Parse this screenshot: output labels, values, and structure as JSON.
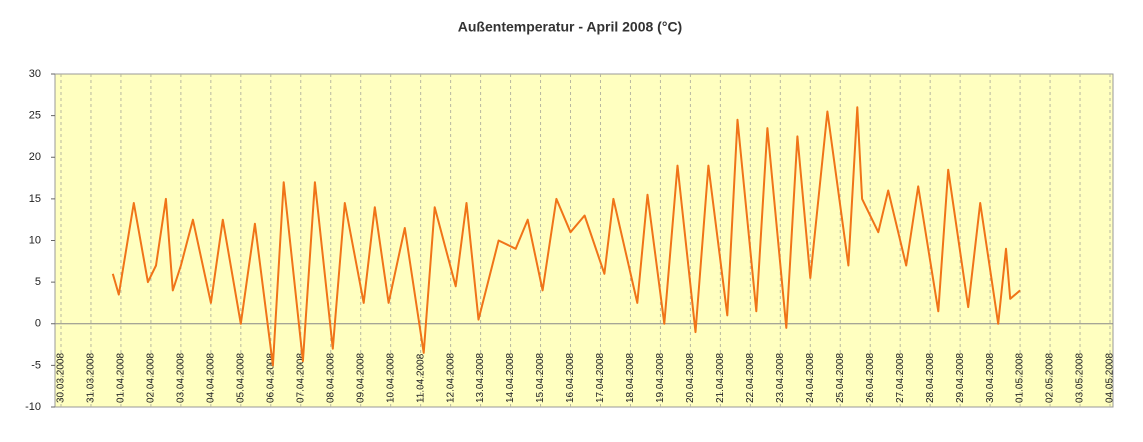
{
  "chart_data": {
    "type": "line",
    "title": "Außentemperatur - April 2008 (°C)",
    "background": "#ffffc0",
    "grid": true,
    "xlim": [
      -0.2,
      35.1
    ],
    "xticks": [
      {
        "value": 0,
        "label": "30.03.2008"
      },
      {
        "value": 1,
        "label": "31.03.2008"
      },
      {
        "value": 2,
        "label": "01.04.2008"
      },
      {
        "value": 3,
        "label": "02.04.2008"
      },
      {
        "value": 4,
        "label": "03.04.2008"
      },
      {
        "value": 5,
        "label": "04.04.2008"
      },
      {
        "value": 6,
        "label": "05.04.2008"
      },
      {
        "value": 7,
        "label": "06.04.2008"
      },
      {
        "value": 8,
        "label": "07.04.2008"
      },
      {
        "value": 9,
        "label": "08.04.2008"
      },
      {
        "value": 10,
        "label": "09.04.2008"
      },
      {
        "value": 11,
        "label": "10.04.2008"
      },
      {
        "value": 12,
        "label": "11.04.2008"
      },
      {
        "value": 13,
        "label": "12.04.2008"
      },
      {
        "value": 14,
        "label": "13.04.2008"
      },
      {
        "value": 15,
        "label": "14.04.2008"
      },
      {
        "value": 16,
        "label": "15.04.2008"
      },
      {
        "value": 17,
        "label": "16.04.2008"
      },
      {
        "value": 18,
        "label": "17.04.2008"
      },
      {
        "value": 19,
        "label": "18.04.2008"
      },
      {
        "value": 20,
        "label": "19.04.2008"
      },
      {
        "value": 21,
        "label": "20.04.2008"
      },
      {
        "value": 22,
        "label": "21.04.2008"
      },
      {
        "value": 23,
        "label": "22.04.2008"
      },
      {
        "value": 24,
        "label": "23.04.2008"
      },
      {
        "value": 25,
        "label": "24.04.2008"
      },
      {
        "value": 26,
        "label": "25.04.2008"
      },
      {
        "value": 27,
        "label": "26.04.2008"
      },
      {
        "value": 28,
        "label": "27.04.2008"
      },
      {
        "value": 29,
        "label": "28.04.2008"
      },
      {
        "value": 30,
        "label": "29.04.2008"
      },
      {
        "value": 31,
        "label": "30.04.2008"
      },
      {
        "value": 32,
        "label": "01.05.2008"
      },
      {
        "value": 33,
        "label": "02.05.2008"
      },
      {
        "value": 34,
        "label": "03.05.2008"
      },
      {
        "value": 35,
        "label": "04.05.2008"
      }
    ],
    "ylim": [
      -10,
      30
    ],
    "yticks": [
      -10,
      -5,
      0,
      5,
      10,
      15,
      20,
      25,
      30
    ],
    "series": [
      {
        "color": "#f07418",
        "x": [
          1.73,
          1.93,
          2.43,
          2.9,
          3.17,
          3.5,
          3.73,
          4.0,
          4.4,
          5.0,
          5.4,
          6.0,
          6.47,
          7.07,
          7.43,
          8.07,
          8.47,
          9.07,
          9.47,
          10.1,
          10.47,
          10.93,
          11.47,
          12.1,
          12.47,
          13.17,
          13.53,
          13.93,
          14.6,
          15.17,
          15.57,
          16.07,
          16.53,
          17.0,
          17.47,
          18.13,
          18.43,
          19.23,
          19.57,
          20.13,
          20.57,
          21.17,
          21.6,
          22.23,
          22.57,
          23.2,
          23.57,
          24.2,
          24.57,
          25.0,
          25.57,
          26.27,
          26.57,
          26.73,
          27.27,
          27.6,
          28.2,
          28.6,
          29.27,
          29.6,
          30.27,
          30.67,
          31.27,
          31.53,
          31.67,
          32.0
        ],
        "values": [
          6,
          3.5,
          14.5,
          5,
          7,
          15,
          4,
          7,
          12.5,
          2.5,
          12.5,
          0,
          12,
          -5,
          17,
          -4.5,
          17,
          -3,
          14.5,
          2.5,
          14,
          2.5,
          11.5,
          -3.5,
          14,
          4.5,
          14.5,
          0.5,
          10,
          9,
          12.5,
          4,
          15,
          11,
          13,
          6,
          15,
          2.5,
          15.5,
          0,
          19,
          -1,
          19,
          1,
          24.5,
          1.5,
          23.5,
          -0.5,
          22.5,
          5.5,
          25.5,
          7,
          26,
          15,
          11,
          16,
          7,
          16.5,
          1.5,
          18.5,
          2,
          14.5,
          0,
          9,
          3,
          4
        ]
      }
    ]
  }
}
